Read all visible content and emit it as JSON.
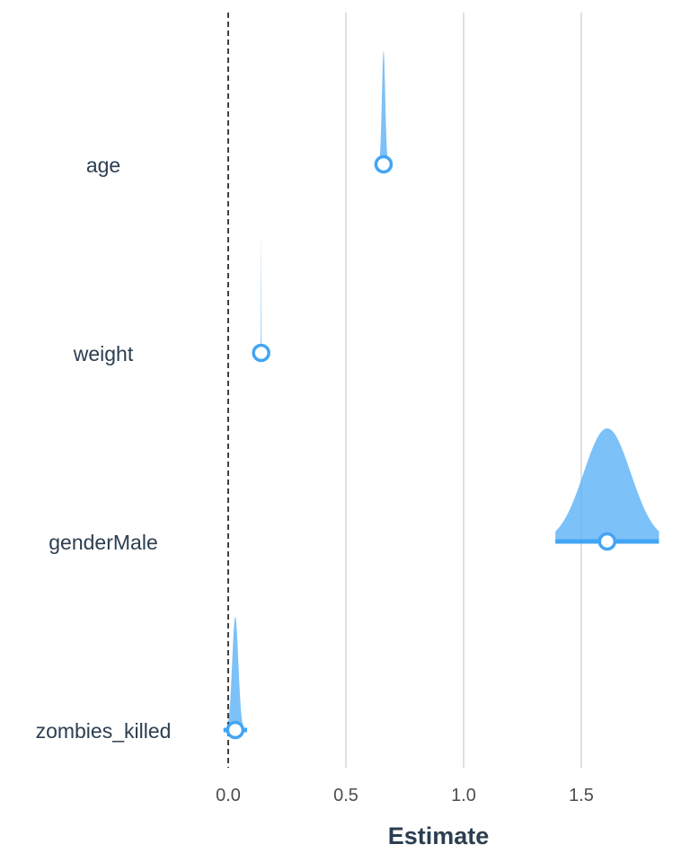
{
  "chart_data": {
    "type": "halfeye",
    "xlabel": "Estimate",
    "ylabel": "",
    "xlim": [
      -0.03,
      1.83
    ],
    "xticks": [
      0.0,
      0.5,
      1.0,
      1.5
    ],
    "xtick_labels": [
      "0.0",
      "0.5",
      "1.0",
      "1.5"
    ],
    "reference_line": 0,
    "grid": "vertical",
    "colors": {
      "density": "#5bb1f6",
      "point": "#42a5f5",
      "ref_line": "#000000",
      "grid": "#e0e0e0"
    },
    "categories": [
      "age",
      "weight",
      "genderMale",
      "zombies_killed"
    ],
    "points": [
      {
        "term": "age",
        "estimate": 0.66,
        "interval": [
          0.64,
          0.68
        ],
        "density_sd": 0.007,
        "density_range": [
          0.64,
          0.68
        ]
      },
      {
        "term": "weight",
        "estimate": 0.14,
        "interval": [
          0.138,
          0.142
        ],
        "density_sd": 0.0008,
        "density_range": [
          0.138,
          0.142
        ]
      },
      {
        "term": "genderMale",
        "estimate": 1.61,
        "interval": [
          1.39,
          1.83
        ],
        "density_sd": 0.1,
        "density_range": [
          1.39,
          1.83
        ]
      },
      {
        "term": "zombies_killed",
        "estimate": 0.03,
        "interval": [
          -0.02,
          0.08
        ],
        "density_sd": 0.013,
        "density_range": [
          -0.02,
          0.08
        ]
      }
    ]
  }
}
